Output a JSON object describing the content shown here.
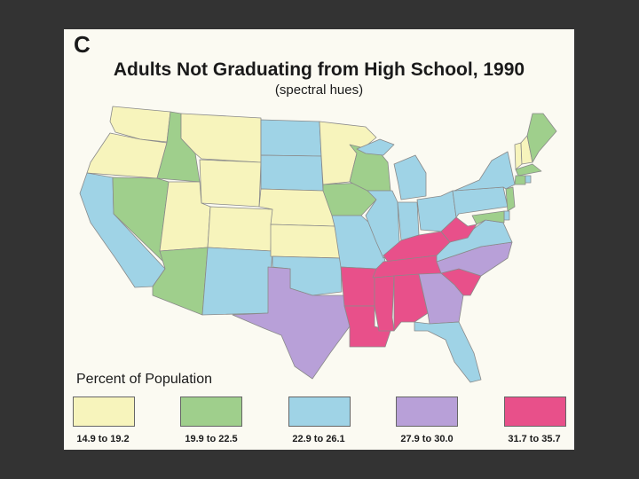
{
  "panel": {
    "letter": "C",
    "title": "Adults Not Graduating from High School, 1990",
    "subtitle": "(spectral hues)"
  },
  "legend": {
    "title": "Percent of Population",
    "classes": [
      {
        "label": "14.9 to 19.2",
        "color": "#f7f4bc"
      },
      {
        "label": "19.9 to 22.5",
        "color": "#9fcf8c"
      },
      {
        "label": "22.9 to 26.1",
        "color": "#9fd3e6"
      },
      {
        "label": "27.9 to 30.0",
        "color": "#b8a0d8"
      },
      {
        "label": "31.7 to 35.7",
        "color": "#e8508a"
      }
    ]
  },
  "states": [
    {
      "name": "WA",
      "class": 0
    },
    {
      "name": "OR",
      "class": 0
    },
    {
      "name": "CA",
      "class": 2
    },
    {
      "name": "NV",
      "class": 1
    },
    {
      "name": "ID",
      "class": 1
    },
    {
      "name": "MT",
      "class": 0
    },
    {
      "name": "WY",
      "class": 0
    },
    {
      "name": "UT",
      "class": 0
    },
    {
      "name": "CO",
      "class": 0
    },
    {
      "name": "AZ",
      "class": 1
    },
    {
      "name": "NM",
      "class": 2
    },
    {
      "name": "ND",
      "class": 2
    },
    {
      "name": "SD",
      "class": 2
    },
    {
      "name": "NE",
      "class": 0
    },
    {
      "name": "KS",
      "class": 0
    },
    {
      "name": "OK",
      "class": 2
    },
    {
      "name": "TX",
      "class": 3
    },
    {
      "name": "MN",
      "class": 0
    },
    {
      "name": "IA",
      "class": 1
    },
    {
      "name": "MO",
      "class": 2
    },
    {
      "name": "AR",
      "class": 4
    },
    {
      "name": "LA",
      "class": 4
    },
    {
      "name": "WI",
      "class": 1
    },
    {
      "name": "IL",
      "class": 2
    },
    {
      "name": "MI",
      "class": 2
    },
    {
      "name": "IN",
      "class": 2
    },
    {
      "name": "OH",
      "class": 2
    },
    {
      "name": "KY",
      "class": 4
    },
    {
      "name": "TN",
      "class": 4
    },
    {
      "name": "MS",
      "class": 4
    },
    {
      "name": "AL",
      "class": 4
    },
    {
      "name": "GA",
      "class": 3
    },
    {
      "name": "FL",
      "class": 2
    },
    {
      "name": "SC",
      "class": 4
    },
    {
      "name": "NC",
      "class": 3
    },
    {
      "name": "VA",
      "class": 2
    },
    {
      "name": "WV",
      "class": 4
    },
    {
      "name": "PA",
      "class": 2
    },
    {
      "name": "NY",
      "class": 2
    },
    {
      "name": "VT",
      "class": 0
    },
    {
      "name": "NH",
      "class": 0
    },
    {
      "name": "ME",
      "class": 1
    },
    {
      "name": "MA",
      "class": 1
    },
    {
      "name": "CT",
      "class": 1
    },
    {
      "name": "RI",
      "class": 2
    },
    {
      "name": "NJ",
      "class": 1
    },
    {
      "name": "DE",
      "class": 2
    },
    {
      "name": "MD",
      "class": 1
    }
  ]
}
